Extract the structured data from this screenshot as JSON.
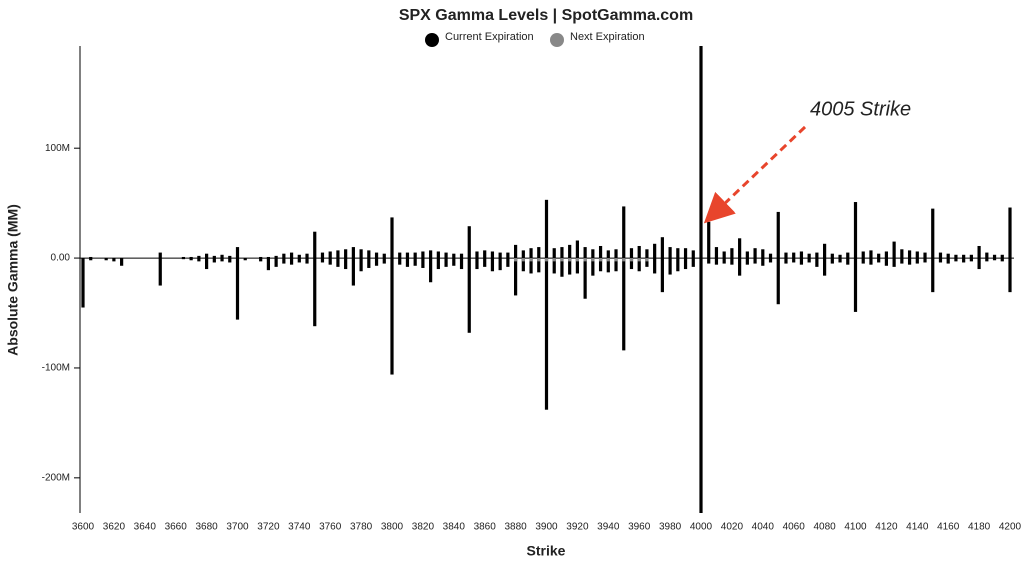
{
  "chart_data": {
    "type": "bar",
    "title": "SPX Gamma Levels | SpotGamma.com",
    "x_label": "Strike",
    "y_label": "Absolute Gamma (MM)",
    "xlim": [
      3600,
      4200
    ],
    "xticks": [
      3600,
      3620,
      3640,
      3660,
      3680,
      3700,
      3720,
      3740,
      3760,
      3780,
      3800,
      3820,
      3840,
      3860,
      3880,
      3900,
      3920,
      3940,
      3960,
      3980,
      4000,
      4020,
      4040,
      4060,
      4080,
      4100,
      4120,
      4140,
      4160,
      4180,
      4200
    ],
    "ylim": [
      -232,
      193
    ],
    "yticks": [
      {
        "value": -200,
        "label": "-200M"
      },
      {
        "value": -100,
        "label": "-100M"
      },
      {
        "value": 0,
        "label": "0.00"
      },
      {
        "value": 100,
        "label": "100M"
      }
    ],
    "x": [
      3600,
      3605,
      3610,
      3615,
      3620,
      3625,
      3630,
      3635,
      3640,
      3645,
      3650,
      3655,
      3660,
      3665,
      3670,
      3675,
      3680,
      3685,
      3690,
      3695,
      3700,
      3705,
      3710,
      3715,
      3720,
      3725,
      3730,
      3735,
      3740,
      3745,
      3750,
      3755,
      3760,
      3765,
      3770,
      3775,
      3780,
      3785,
      3790,
      3795,
      3800,
      3805,
      3810,
      3815,
      3820,
      3825,
      3830,
      3835,
      3840,
      3845,
      3850,
      3855,
      3860,
      3865,
      3870,
      3875,
      3880,
      3885,
      3890,
      3895,
      3900,
      3905,
      3910,
      3915,
      3920,
      3925,
      3930,
      3935,
      3940,
      3945,
      3950,
      3955,
      3960,
      3965,
      3970,
      3975,
      3980,
      3985,
      3990,
      3995,
      4000,
      4005,
      4010,
      4015,
      4020,
      4025,
      4030,
      4035,
      4040,
      4045,
      4050,
      4055,
      4060,
      4065,
      4070,
      4075,
      4080,
      4085,
      4090,
      4095,
      4100,
      4105,
      4110,
      4115,
      4120,
      4125,
      4130,
      4135,
      4140,
      4145,
      4150,
      4155,
      4160,
      4165,
      4170,
      4175,
      4180,
      4185,
      4190,
      4195,
      4200
    ],
    "series": [
      {
        "name": "Current Expiration",
        "color": "#000000",
        "values": [
          0,
          1,
          0,
          0,
          0,
          0,
          0,
          0,
          0,
          0,
          5,
          0,
          0,
          1,
          1,
          2,
          4,
          2,
          3,
          2,
          10,
          0,
          0,
          1,
          1,
          2,
          4,
          5,
          3,
          4,
          24,
          5,
          6,
          7,
          8,
          10,
          8,
          7,
          5,
          4,
          37,
          5,
          5,
          5,
          6,
          7,
          6,
          5,
          4,
          4,
          29,
          6,
          7,
          6,
          5,
          5,
          12,
          7,
          9,
          10,
          53,
          9,
          10,
          12,
          16,
          10,
          8,
          11,
          7,
          8,
          47,
          9,
          11,
          8,
          13,
          19,
          10,
          9,
          9,
          7,
          193,
          33,
          10,
          6,
          9,
          18,
          6,
          9,
          8,
          4,
          42,
          5,
          5,
          6,
          4,
          5,
          13,
          4,
          3,
          5,
          51,
          6,
          7,
          4,
          6,
          15,
          8,
          7,
          6,
          5,
          45,
          5,
          4,
          3,
          3,
          3,
          11,
          5,
          3,
          3,
          46
        ],
        "put_values": [
          -45,
          -2,
          0,
          -2,
          -3,
          -7,
          0,
          0,
          0,
          0,
          -25,
          0,
          0,
          -1,
          -2,
          -3,
          -10,
          -4,
          -3,
          -4,
          -56,
          -2,
          0,
          -3,
          -11,
          -8,
          -5,
          -6,
          -4,
          -5,
          -62,
          -4,
          -6,
          -8,
          -10,
          -25,
          -12,
          -9,
          -7,
          -5,
          -106,
          -6,
          -8,
          -7,
          -9,
          -22,
          -10,
          -8,
          -7,
          -10,
          -68,
          -10,
          -8,
          -12,
          -11,
          -8,
          -34,
          -12,
          -14,
          -13,
          -138,
          -14,
          -17,
          -15,
          -14,
          -37,
          -16,
          -12,
          -13,
          -12,
          -84,
          -10,
          -12,
          -8,
          -14,
          -31,
          -15,
          -12,
          -10,
          -8,
          -232,
          -5,
          -6,
          -5,
          -6,
          -16,
          -6,
          -5,
          -7,
          -4,
          -42,
          -5,
          -4,
          -6,
          -4,
          -8,
          -16,
          -5,
          -4,
          -6,
          -49,
          -5,
          -6,
          -4,
          -7,
          -8,
          -5,
          -6,
          -5,
          -4,
          -31,
          -4,
          -5,
          -3,
          -4,
          -3,
          -10,
          -3,
          -2,
          -3,
          -31
        ]
      },
      {
        "name": "Next Expiration",
        "color": "#888888",
        "values": [
          0,
          0,
          0,
          0,
          0,
          0,
          0,
          0,
          0,
          0,
          0,
          0,
          0,
          0,
          0,
          0,
          0,
          0,
          0,
          0,
          0,
          0,
          0,
          0,
          0,
          0,
          0,
          0,
          0,
          0,
          0,
          0,
          0,
          0,
          0,
          0,
          0,
          0,
          0,
          0,
          0,
          0,
          0,
          0,
          0,
          0,
          0,
          0,
          0,
          0,
          0,
          0,
          0,
          0,
          0,
          0,
          -3,
          -3,
          -3,
          -3,
          -3,
          -3,
          -3,
          -3,
          -3,
          -3,
          -3,
          -3,
          -3,
          -3,
          -3,
          -3,
          -3,
          -3,
          0,
          0,
          0,
          0,
          0,
          0,
          0,
          0,
          0,
          0,
          0,
          0,
          0,
          0,
          0,
          0,
          0,
          0,
          0,
          0,
          0,
          0,
          0,
          0,
          0,
          0,
          0,
          0,
          0,
          0,
          0,
          0,
          0,
          0,
          0,
          0,
          0,
          0,
          0,
          0,
          0,
          0,
          0,
          0,
          0,
          0,
          0
        ]
      }
    ],
    "annotation": {
      "text": "4005 Strike",
      "x": 4005,
      "color": "#e8452c"
    }
  }
}
